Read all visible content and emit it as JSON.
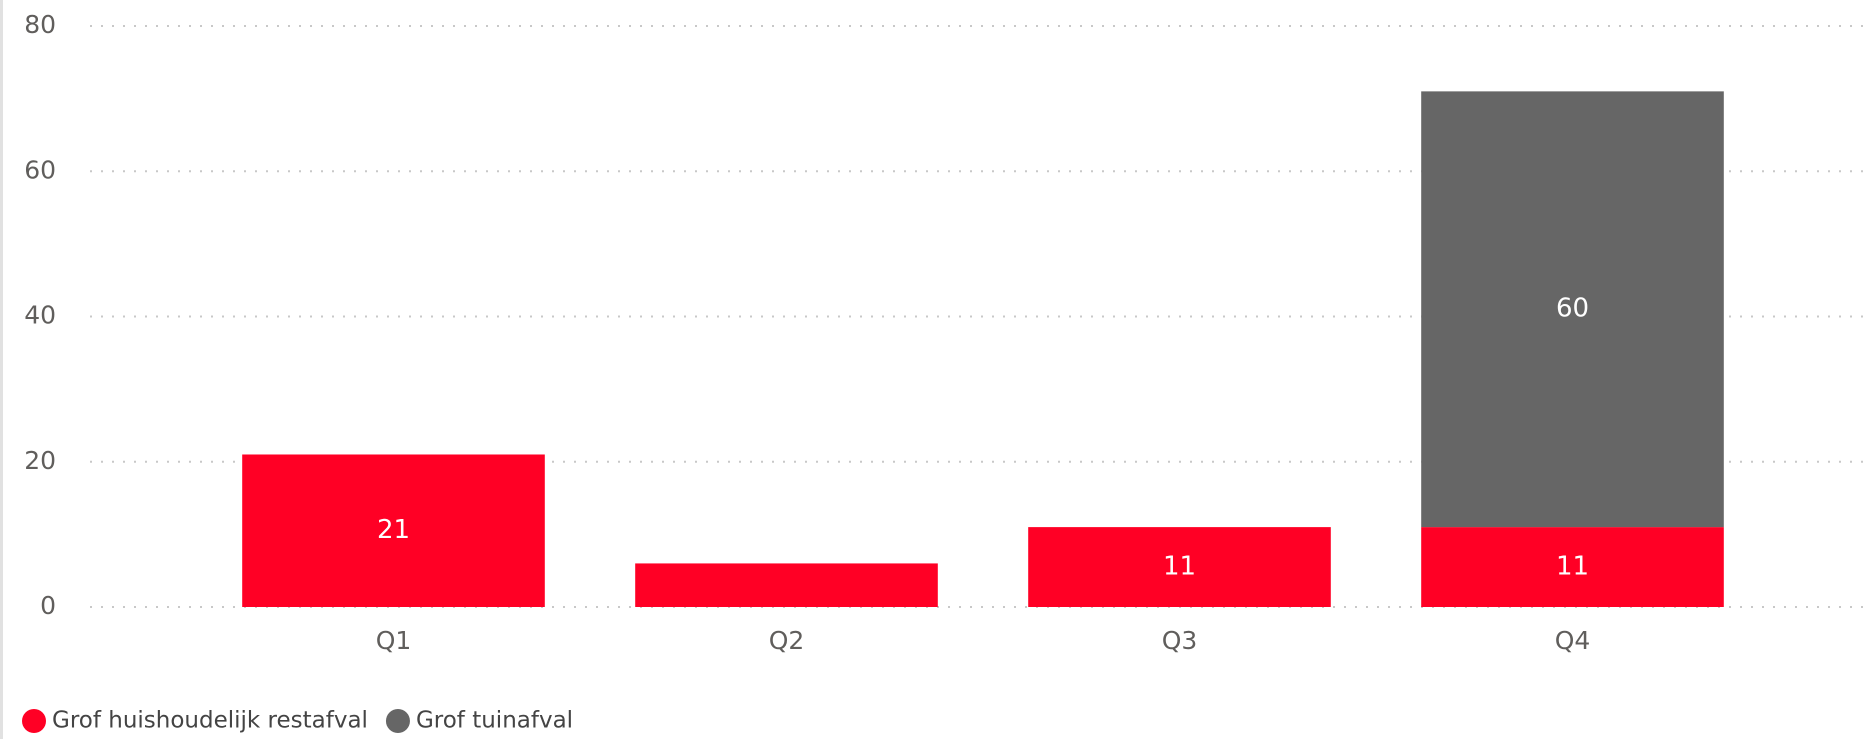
{
  "chart_data": {
    "type": "stacked_bar",
    "categories": [
      "Q1",
      "Q2",
      "Q3",
      "Q4"
    ],
    "series": [
      {
        "name": "Grof huishoudelijk restafval",
        "color": "#ff0025",
        "values": [
          21,
          6,
          11,
          11
        ],
        "value_labels": [
          "21",
          null,
          "11",
          "11"
        ]
      },
      {
        "name": "Grof tuinafval",
        "color": "#666666",
        "values": [
          null,
          null,
          null,
          60
        ],
        "value_labels": [
          null,
          null,
          null,
          "60"
        ]
      }
    ],
    "ylim": [
      0,
      80
    ],
    "yticks": [
      0,
      20,
      40,
      60,
      80
    ],
    "grid": true
  }
}
